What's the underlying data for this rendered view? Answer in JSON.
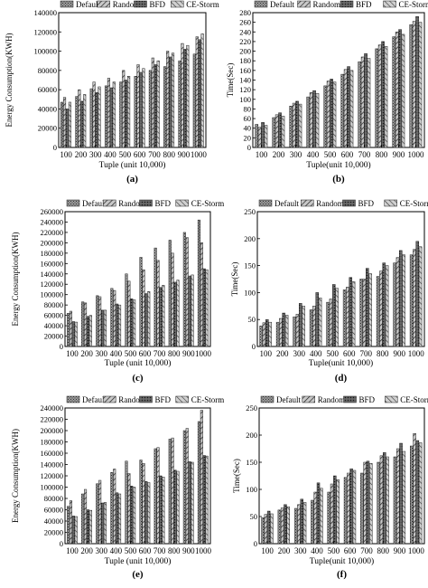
{
  "theme": {
    "bar_color": "#8c8c8c",
    "dark_bar_color": "#5a5a5a",
    "axis_color": "#000000"
  },
  "chart_data": [
    {
      "panel": "(a)",
      "type": "bar",
      "ylabel": "Energy Consumption(KWH)",
      "xlabel": "Tuple (unit 10,000)",
      "categories": [
        "100",
        "200",
        "300",
        "400",
        "500",
        "600",
        "700",
        "800",
        "900",
        "1000"
      ],
      "ylim": [
        0,
        140000
      ],
      "yticks": [
        0,
        20000,
        40000,
        60000,
        80000,
        100000,
        120000,
        140000
      ],
      "ytick_labels": [
        "0",
        "20000",
        "40000",
        "60000",
        "80000",
        "100000",
        "120000",
        "140000"
      ],
      "legend": "top",
      "series": [
        {
          "name": "Default",
          "values": [
            47000,
            53000,
            61000,
            64000,
            68000,
            74000,
            80000,
            84000,
            90000,
            97000
          ]
        },
        {
          "name": "Random",
          "values": [
            52000,
            60000,
            68000,
            72000,
            80000,
            86000,
            93000,
            100000,
            108000,
            115000
          ]
        },
        {
          "name": "BFD",
          "values": [
            40000,
            48000,
            57000,
            62000,
            70000,
            78000,
            86000,
            94000,
            102000,
            112000
          ]
        },
        {
          "name": "CE-Storm",
          "values": [
            47000,
            55000,
            63000,
            68000,
            74000,
            82000,
            90000,
            98000,
            106000,
            118000
          ]
        }
      ]
    },
    {
      "panel": "(b)",
      "type": "bar",
      "ylabel": "Time(Sec)",
      "xlabel": "Tuple(unit 10,000)",
      "categories": [
        "100",
        "200",
        "300",
        "400",
        "500",
        "600",
        "700",
        "800",
        "900",
        "1000"
      ],
      "ylim": [
        0,
        280
      ],
      "yticks": [
        0,
        20,
        40,
        60,
        80,
        100,
        120,
        140,
        160,
        180,
        200,
        220,
        240,
        260,
        280
      ],
      "ytick_labels": [
        "0",
        "20",
        "40",
        "60",
        "80",
        "100",
        "120",
        "140",
        "160",
        "180",
        "200",
        "220",
        "240",
        "260",
        "280"
      ],
      "legend": "top",
      "series": [
        {
          "name": "Default",
          "values": [
            48,
            62,
            86,
            105,
            128,
            152,
            178,
            205,
            230,
            255
          ]
        },
        {
          "name": "Random",
          "values": [
            42,
            68,
            92,
            114,
            138,
            162,
            188,
            213,
            240,
            262
          ]
        },
        {
          "name": "BFD",
          "values": [
            52,
            72,
            96,
            118,
            142,
            168,
            195,
            220,
            245,
            272
          ]
        },
        {
          "name": "CE-Storm",
          "values": [
            46,
            65,
            90,
            112,
            136,
            160,
            185,
            210,
            235,
            260
          ]
        }
      ]
    },
    {
      "panel": "(c)",
      "type": "bar",
      "ylabel": "Energy Consumption(KWH)",
      "xlabel": "Tuple (unit 10,000)",
      "categories": [
        "100",
        "200",
        "300",
        "400",
        "500",
        "600",
        "700",
        "800",
        "900",
        "1000"
      ],
      "ylim": [
        0,
        260000
      ],
      "yticks": [
        0,
        20000,
        40000,
        60000,
        80000,
        100000,
        120000,
        140000,
        160000,
        180000,
        200000,
        220000,
        240000,
        260000
      ],
      "ytick_labels": [
        "0",
        "20000",
        "40000",
        "60000",
        "80000",
        "100000",
        "120000",
        "140000",
        "160000",
        "180000",
        "200000",
        "220000",
        "240000",
        "260000"
      ],
      "legend": "top",
      "series": [
        {
          "name": "Default",
          "values": [
            64000,
            86000,
            98000,
            112000,
            140000,
            172000,
            190000,
            205000,
            220000,
            244000
          ]
        },
        {
          "name": "Random",
          "values": [
            68000,
            84000,
            96000,
            108000,
            126000,
            148000,
            166000,
            180000,
            210000,
            200000
          ]
        },
        {
          "name": "BFD",
          "values": [
            48000,
            58000,
            70000,
            82000,
            92000,
            102000,
            114000,
            124000,
            136000,
            150000
          ]
        },
        {
          "name": "CE-Storm",
          "values": [
            47000,
            60000,
            70000,
            80000,
            90000,
            106000,
            118000,
            128000,
            138000,
            148000
          ]
        }
      ]
    },
    {
      "panel": "(d)",
      "type": "bar",
      "ylabel": "Time(Sec)",
      "xlabel": "Tuple(unit 10,000)",
      "categories": [
        "100",
        "200",
        "300",
        "400",
        "500",
        "600",
        "700",
        "800",
        "900",
        "1000"
      ],
      "ylim": [
        0,
        250
      ],
      "yticks": [
        0,
        50,
        100,
        150,
        200,
        250
      ],
      "ytick_labels": [
        "0",
        "50",
        "100",
        "150",
        "200",
        "250"
      ],
      "legend": "top",
      "series": [
        {
          "name": "Default",
          "values": [
            38,
            45,
            55,
            68,
            82,
            105,
            125,
            130,
            155,
            170
          ]
        },
        {
          "name": "Random",
          "values": [
            44,
            52,
            60,
            75,
            88,
            110,
            125,
            140,
            165,
            180
          ]
        },
        {
          "name": "BFD",
          "values": [
            50,
            62,
            80,
            100,
            115,
            128,
            145,
            155,
            178,
            195
          ]
        },
        {
          "name": "CE-Storm",
          "values": [
            45,
            58,
            75,
            90,
            108,
            120,
            135,
            150,
            170,
            185
          ]
        }
      ]
    },
    {
      "panel": "(e)",
      "type": "bar",
      "ylabel": "Energy Consumption(KWH)",
      "xlabel": "Tuple (unit 10,000)",
      "categories": [
        "100",
        "200",
        "300",
        "400",
        "500",
        "600",
        "700",
        "800",
        "900",
        "1000"
      ],
      "ylim": [
        0,
        240000
      ],
      "yticks": [
        0,
        20000,
        40000,
        60000,
        80000,
        100000,
        120000,
        140000,
        160000,
        180000,
        200000,
        220000,
        240000
      ],
      "ytick_labels": [
        "0",
        "20000",
        "40000",
        "60000",
        "80000",
        "100000",
        "120000",
        "140000",
        "160000",
        "180000",
        "200000",
        "220000",
        "240000"
      ],
      "legend": "top",
      "series": [
        {
          "name": "Default",
          "values": [
            66000,
            88000,
            106000,
            126000,
            146000,
            148000,
            168000,
            185000,
            200000,
            216000
          ]
        },
        {
          "name": "Random",
          "values": [
            76000,
            96000,
            112000,
            132000,
            124000,
            142000,
            170000,
            187000,
            204000,
            236000
          ]
        },
        {
          "name": "BFD",
          "values": [
            49000,
            60000,
            72000,
            90000,
            102000,
            110000,
            120000,
            130000,
            145000,
            156000
          ]
        },
        {
          "name": "CE-Storm",
          "values": [
            48000,
            59000,
            73000,
            88000,
            100000,
            108000,
            118000,
            128000,
            144000,
            155000
          ]
        }
      ]
    },
    {
      "panel": "(f)",
      "type": "bar",
      "ylabel": "Time(Sec)",
      "xlabel": "Tuple(unit 10,000)",
      "categories": [
        "100",
        "200",
        "300",
        "400",
        "500",
        "600",
        "700",
        "800",
        "900",
        "1000"
      ],
      "ylim": [
        0,
        250
      ],
      "yticks": [
        0,
        50,
        100,
        150,
        200,
        250
      ],
      "ytick_labels": [
        "0",
        "50",
        "100",
        "150",
        "200",
        "250"
      ],
      "legend": "top",
      "series": [
        {
          "name": "Default",
          "values": [
            48,
            62,
            65,
            80,
            95,
            122,
            130,
            150,
            160,
            180
          ]
        },
        {
          "name": "Random",
          "values": [
            54,
            66,
            72,
            95,
            110,
            130,
            150,
            162,
            175,
            203
          ]
        },
        {
          "name": "BFD",
          "values": [
            60,
            72,
            82,
            112,
            125,
            138,
            152,
            168,
            185,
            190
          ]
        },
        {
          "name": "CE-Storm",
          "values": [
            55,
            68,
            76,
            102,
            118,
            135,
            148,
            160,
            170,
            186
          ]
        }
      ]
    }
  ]
}
